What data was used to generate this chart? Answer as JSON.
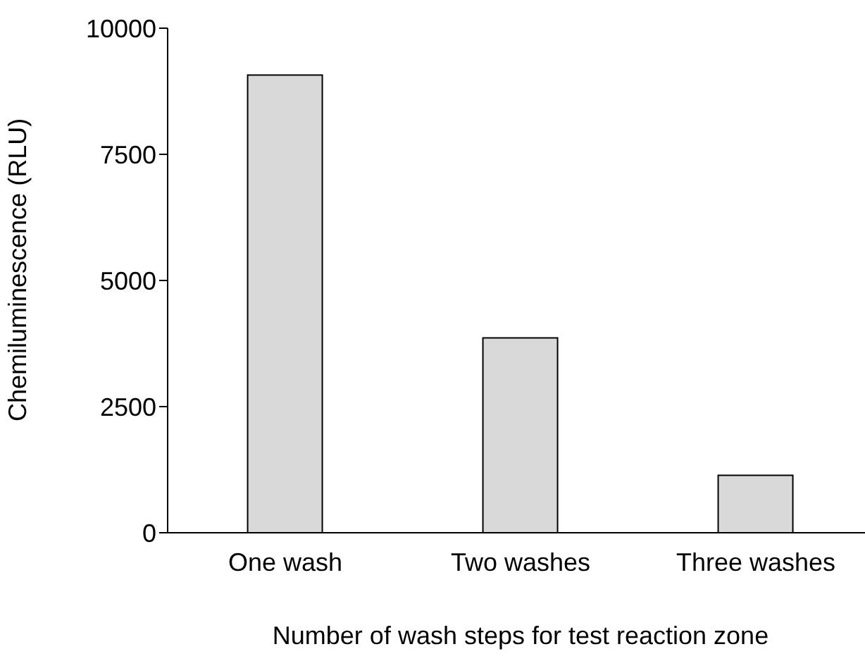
{
  "chart_data": {
    "type": "bar",
    "xlabel": "Number of wash steps for test reaction zone",
    "ylabel": "Chemiluminescence (RLU)",
    "categories": [
      "One wash",
      "Two washes",
      "Three washes"
    ],
    "values": [
      9070,
      3860,
      1140
    ],
    "color": "#d9d9d9",
    "ylim": [
      0,
      10000
    ],
    "yticks": [
      0,
      2500,
      5000,
      7500,
      10000
    ],
    "grid": false,
    "legend": false
  }
}
